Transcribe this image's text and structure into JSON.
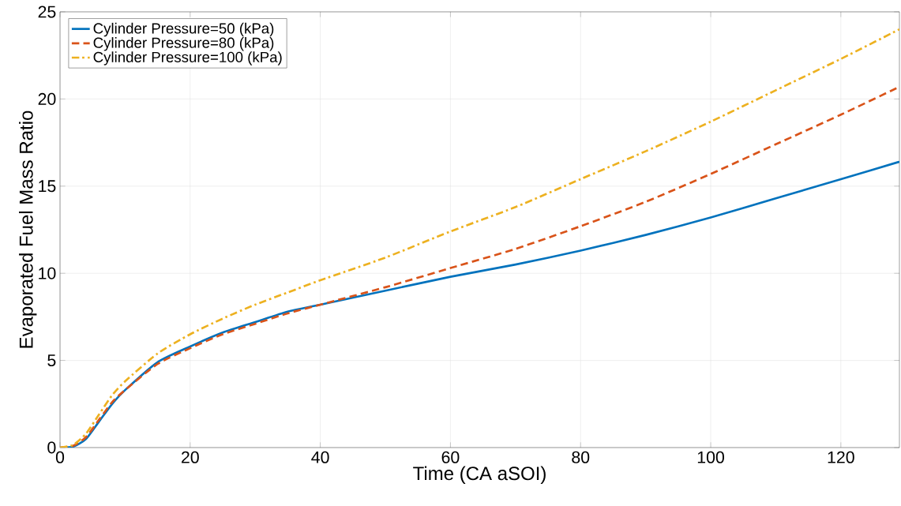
{
  "chart_data": {
    "type": "line",
    "xlabel": "Time (CA aSOI)",
    "ylabel": "Evaporated Fuel Mass Ratio",
    "x": [
      0,
      2,
      4,
      6,
      8,
      10,
      15,
      20,
      25,
      30,
      35,
      40,
      50,
      60,
      70,
      80,
      90,
      100,
      110,
      120,
      129
    ],
    "xlim": [
      0,
      129
    ],
    "xticks": [
      0,
      20,
      40,
      60,
      80,
      100,
      120
    ],
    "ylim": [
      0,
      25
    ],
    "yticks": [
      0,
      5,
      10,
      15,
      20,
      25
    ],
    "grid": true,
    "legend": "top left",
    "series": [
      {
        "name": "Cylinder Pressure=50 (kPa)",
        "color": "#0072bd",
        "line_style": "solid",
        "values": [
          0,
          0.05,
          0.5,
          1.5,
          2.5,
          3.3,
          4.9,
          5.8,
          6.6,
          7.2,
          7.8,
          8.2,
          9.0,
          9.8,
          10.5,
          11.3,
          12.2,
          13.2,
          14.3,
          15.4,
          16.4
        ]
      },
      {
        "name": "Cylinder Pressure=80 (kPa)",
        "color": "#d95319",
        "line_style": "dashed",
        "values": [
          0,
          0.1,
          0.6,
          1.6,
          2.6,
          3.3,
          4.8,
          5.7,
          6.5,
          7.1,
          7.7,
          8.2,
          9.2,
          10.3,
          11.4,
          12.7,
          14.1,
          15.7,
          17.4,
          19.1,
          20.7
        ]
      },
      {
        "name": "Cylinder Pressure=100 (kPa)",
        "color": "#edb120",
        "line_style": "dashdot",
        "values": [
          0,
          0.15,
          0.8,
          1.9,
          3.0,
          3.8,
          5.4,
          6.5,
          7.4,
          8.2,
          8.9,
          9.6,
          10.9,
          12.4,
          13.8,
          15.4,
          17.0,
          18.7,
          20.5,
          22.3,
          24.0
        ]
      }
    ]
  }
}
